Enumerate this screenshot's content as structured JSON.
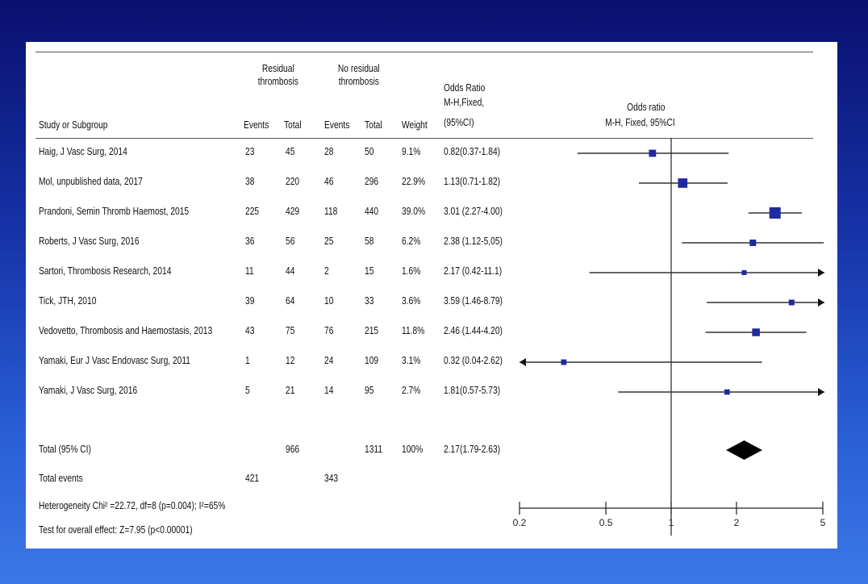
{
  "chart_data": {
    "type": "forest",
    "columns": {
      "study": "Study or Subgroup",
      "group1": "Residual thrombosis",
      "group2": "No residual thrombosis",
      "events": "Events",
      "total": "Total",
      "weight": "Weight",
      "or": "Odds Ratio M-H,Fixed, (95%CI)",
      "plot_title": "Odds ratio M-H, Fixed, 95%CI"
    },
    "header_lines": {
      "g1_a": "Residual",
      "g1_b": "thrombosis",
      "g2_a": "No residual",
      "g2_b": "thrombosis",
      "or_a": "Odds Ratio",
      "or_b": "M-H,Fixed,",
      "or_c": "(95%CI)",
      "plot_a": "Odds ratio",
      "plot_b": "M-H, Fixed, 95%CI"
    },
    "studies": [
      {
        "name": "Haig, J Vasc Surg, 2014",
        "e1": "23",
        "t1": "45",
        "e2": "28",
        "t2": "50",
        "weight": "9.1%",
        "ci_text": "0.82(0.37-1.84)",
        "or": 0.82,
        "lo": 0.37,
        "hi": 1.84
      },
      {
        "name": "Mol, unpublished data, 2017",
        "e1": "38",
        "t1": "220",
        "e2": "46",
        "t2": "296",
        "weight": "22.9%",
        "ci_text": "1.13(0.71-1.82)",
        "or": 1.13,
        "lo": 0.71,
        "hi": 1.82
      },
      {
        "name": "Prandoni, Semin Thromb Haemost, 2015",
        "e1": "225",
        "t1": "429",
        "e2": "118",
        "t2": "440",
        "weight": "39.0%",
        "ci_text": "3.01 (2.27-4.00)",
        "or": 3.01,
        "lo": 2.27,
        "hi": 4.0
      },
      {
        "name": "Roberts, J Vasc Surg, 2016",
        "e1": "36",
        "t1": "56",
        "e2": "25",
        "t2": "58",
        "weight": "6.2%",
        "ci_text": "2.38 (1.12-5,05)",
        "or": 2.38,
        "lo": 1.12,
        "hi": 5.05
      },
      {
        "name": "Sartori, Thrombosis Research, 2014",
        "e1": "11",
        "t1": "44",
        "e2": "2",
        "t2": "15",
        "weight": "1.6%",
        "ci_text": "2.17 (0.42-11.1)",
        "or": 2.17,
        "lo": 0.42,
        "hi": 11.1
      },
      {
        "name": "Tick, JTH, 2010",
        "e1": "39",
        "t1": "64",
        "e2": "10",
        "t2": "33",
        "weight": "3.6%",
        "ci_text": "3.59 (1.46-8.79)",
        "or": 3.59,
        "lo": 1.46,
        "hi": 8.79
      },
      {
        "name": "Vedovetto, Thrombosis and Haemostasis, 2013",
        "e1": "43",
        "t1": "75",
        "e2": "76",
        "t2": "215",
        "weight": "11.8%",
        "ci_text": "2.46 (1.44-4.20)",
        "or": 2.46,
        "lo": 1.44,
        "hi": 4.2
      },
      {
        "name": "Yamaki, Eur J Vasc Endovasc Surg, 2011",
        "e1": "1",
        "t1": "12",
        "e2": "24",
        "t2": "109",
        "weight": "3.1%",
        "ci_text": "0.32 (0.04-2.62)",
        "or": 0.32,
        "lo": 0.04,
        "hi": 2.62
      },
      {
        "name": "Yamaki, J Vasc Surg, 2016",
        "e1": "5",
        "t1": "21",
        "e2": "14",
        "t2": "95",
        "weight": "2.7%",
        "ci_text": "1.81(0.57-5.73)",
        "or": 1.81,
        "lo": 0.57,
        "hi": 5.73
      }
    ],
    "total": {
      "label": "Total (95% CI)",
      "t1": "966",
      "t2": "1311",
      "weight": "100%",
      "ci_text": "2.17(1.79-2.63)",
      "or": 2.17,
      "lo": 1.79,
      "hi": 2.63
    },
    "total_events": {
      "label": "Total events",
      "e1": "421",
      "e2": "343"
    },
    "heterogeneity": "Heterogeneity Chi² =22.72, df=8 (p=0.004); I²=65%",
    "overall_effect": "Test for overall effect: Z=7.95 (p<0.00001)",
    "x_axis": {
      "scale": "log",
      "xlim": [
        0.2,
        5
      ],
      "ticks": [
        0.2,
        0.5,
        1,
        2,
        5
      ],
      "tick_labels": [
        "0.2",
        "0.5",
        "1",
        "2",
        "5"
      ]
    },
    "marker_color": "#1f2a9c",
    "grid": false
  }
}
